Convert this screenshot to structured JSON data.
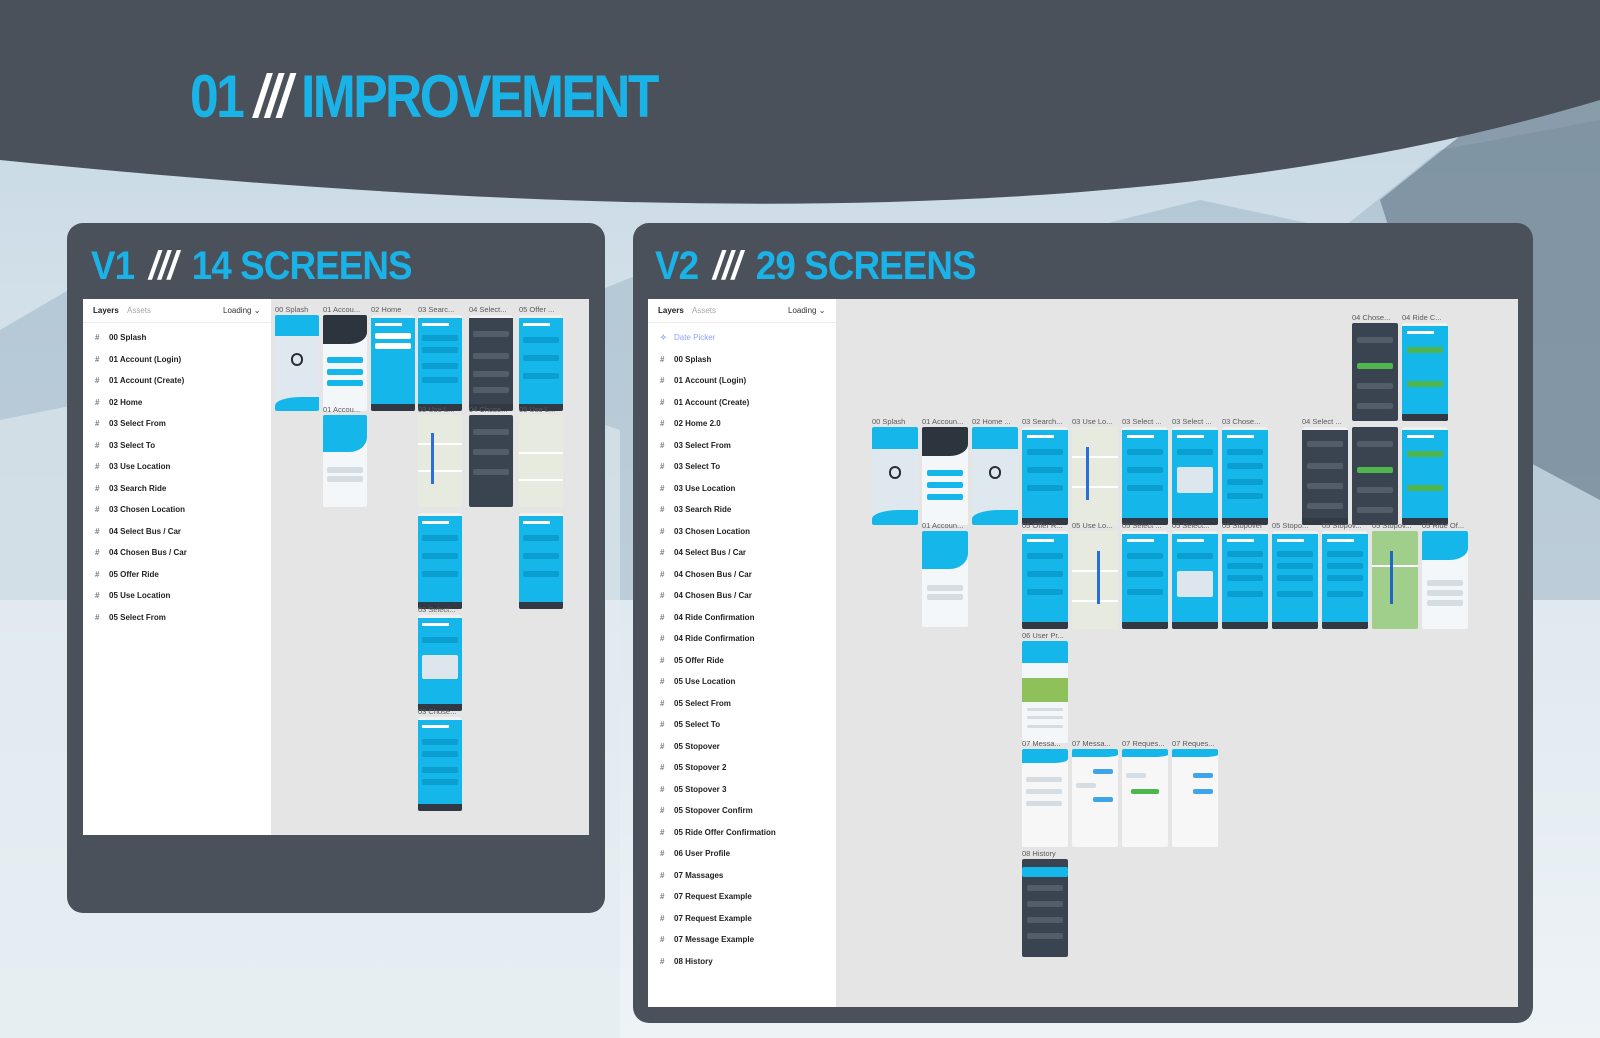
{
  "header": {
    "number": "01",
    "separator": "///",
    "title": "IMPROVEMENT"
  },
  "colors": {
    "accent": "#1ab3e8",
    "panel": "#4a515b",
    "separator": "#ffffff"
  },
  "v1": {
    "version": "V1",
    "separator": "///",
    "count_label": "14 SCREENS",
    "layers_tab": "Layers",
    "assets_tab": "Assets",
    "loading": "Loading ⌄",
    "layers": [
      "00 Splash",
      "01 Account (Login)",
      "01 Account (Create)",
      "02 Home",
      "03 Select From",
      "03 Select To",
      "03 Use Location",
      "03 Search Ride",
      "03 Chosen Location",
      "04 Select Bus / Car",
      "04 Chosen Bus / Car",
      "05 Offer Ride",
      "05 Use Location",
      "05 Select From"
    ],
    "frame_labels": [
      "00 Splash",
      "01 Accou...",
      "02 Home",
      "03 Searc...",
      "04 Select...",
      "05 Offer ...",
      "01 Accou...",
      "03 Use L...",
      "04 Chose...",
      "05 Use L...",
      "03 Select...",
      "03 Chose..."
    ]
  },
  "v2": {
    "version": "V2",
    "separator": "///",
    "count_label": "29 SCREENS",
    "layers_tab": "Layers",
    "assets_tab": "Assets",
    "loading": "Loading ⌄",
    "active_layer": "Date Picker",
    "layers": [
      "00 Splash",
      "01 Account (Login)",
      "01 Account (Create)",
      "02 Home 2.0",
      "03 Select From",
      "03 Select To",
      "03 Use Location",
      "03 Search Ride",
      "03 Chosen Location",
      "04 Select Bus / Car",
      "04 Chosen Bus / Car",
      "04 Chosen Bus / Car",
      "04 Ride Confirmation",
      "04 Ride Confirmation",
      "05 Offer Ride",
      "05 Use Location",
      "05 Select From",
      "05 Select To",
      "05 Stopover",
      "05 Stopover 2",
      "05 Stopover 3",
      "05 Stopover Confirm",
      "05 Ride Offer Confirmation",
      "06 User Profile",
      "07 Massages",
      "07 Request Example",
      "07 Request Example",
      "07 Message Example",
      "08 History"
    ],
    "frame_labels": [
      "04 Chose...",
      "04 Ride C...",
      "00 Splash",
      "01 Accoun...",
      "02 Home ...",
      "03 Search...",
      "03 Use Lo...",
      "03 Select ...",
      "03 Select ...",
      "03 Chose...",
      "04 Select ...",
      "01 Accoun...",
      "05 Offer R...",
      "05 Use Lo...",
      "05 Select ...",
      "05 Select...",
      "05 Stopover",
      "05 Stopo...",
      "05 Stopov...",
      "05 Stopov...",
      "05 Ride Of...",
      "06 User Pr...",
      "07 Messa...",
      "07 Messa...",
      "07 Reques...",
      "07 Reques...",
      "08 History"
    ]
  }
}
